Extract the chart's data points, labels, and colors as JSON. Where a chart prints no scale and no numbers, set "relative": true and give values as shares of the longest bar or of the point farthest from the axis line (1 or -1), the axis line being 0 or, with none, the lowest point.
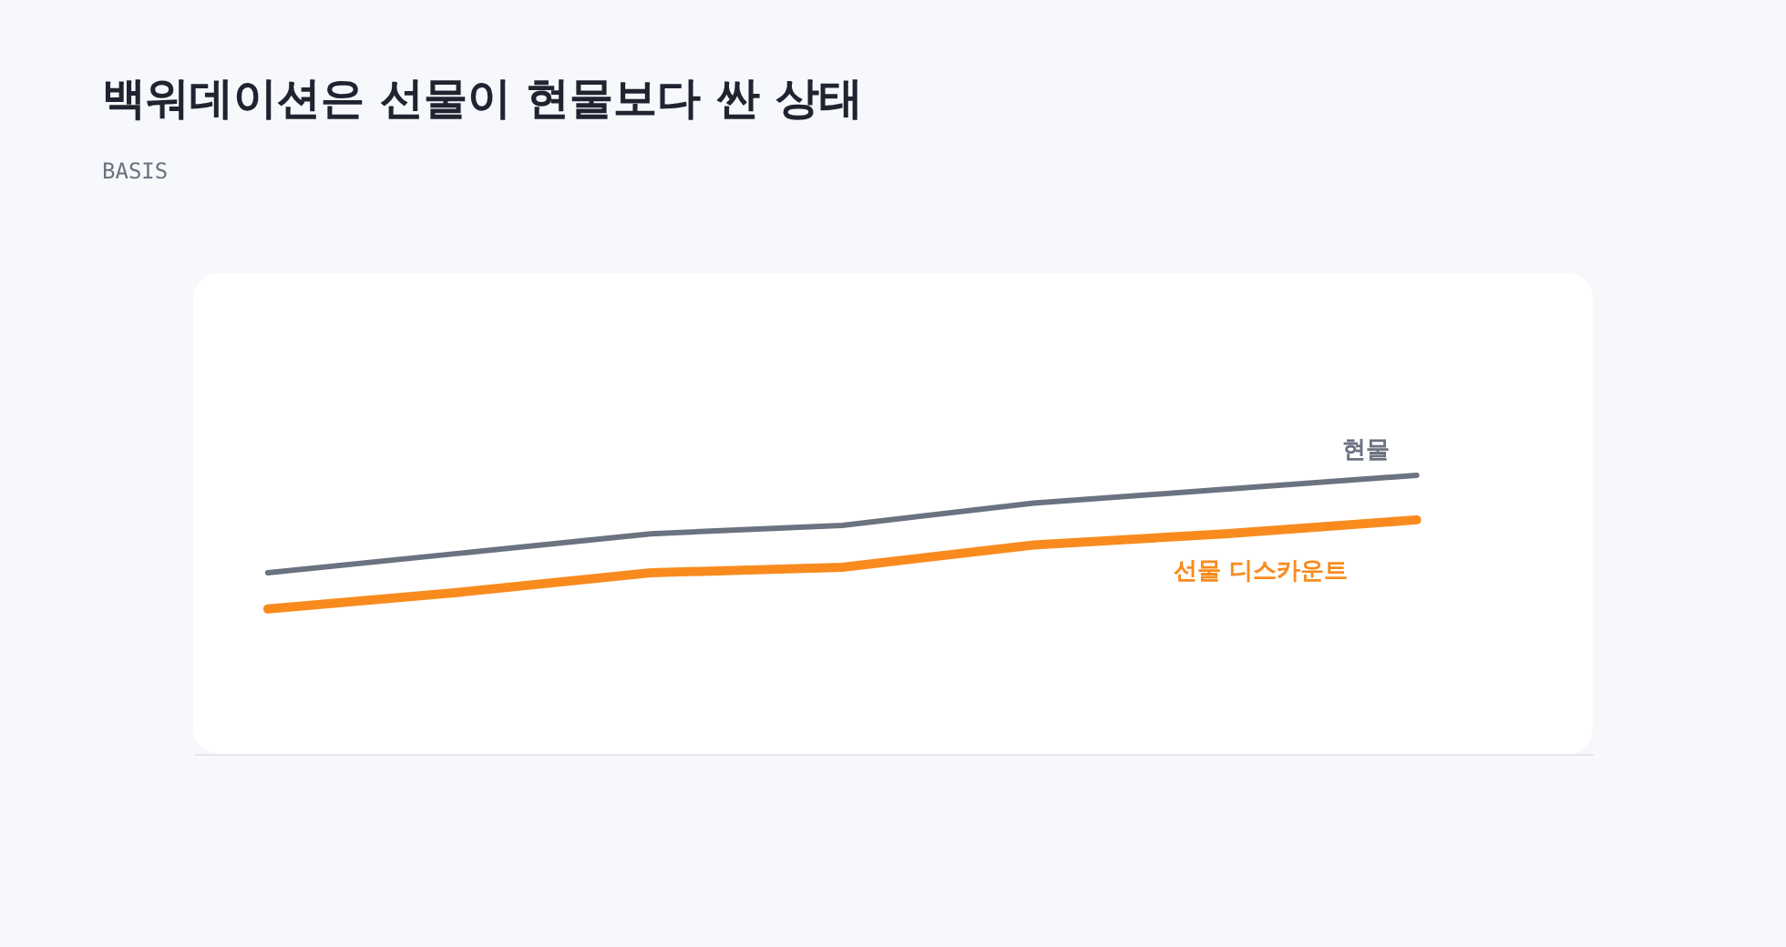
{
  "chart_data": {
    "type": "line",
    "title": "백워데이션은 선물이 현물보다 싼 상태",
    "subtitle": "BASIS",
    "relative": true,
    "marker": "none",
    "line_style": "solid",
    "categories": [
      null,
      null,
      null,
      null,
      null,
      null,
      null
    ],
    "series": [
      {
        "name": "현물",
        "color": "#6b7280",
        "values": [
          0.65,
          0.72,
          0.79,
          0.82,
          0.9,
          0.95,
          1
        ]
      },
      {
        "name": "선물 디스카운트",
        "color": "#f98b1e",
        "values": [
          0.52,
          0.58,
          0.65,
          0.67,
          0.75,
          0.79,
          0.84
        ]
      }
    ]
  }
}
